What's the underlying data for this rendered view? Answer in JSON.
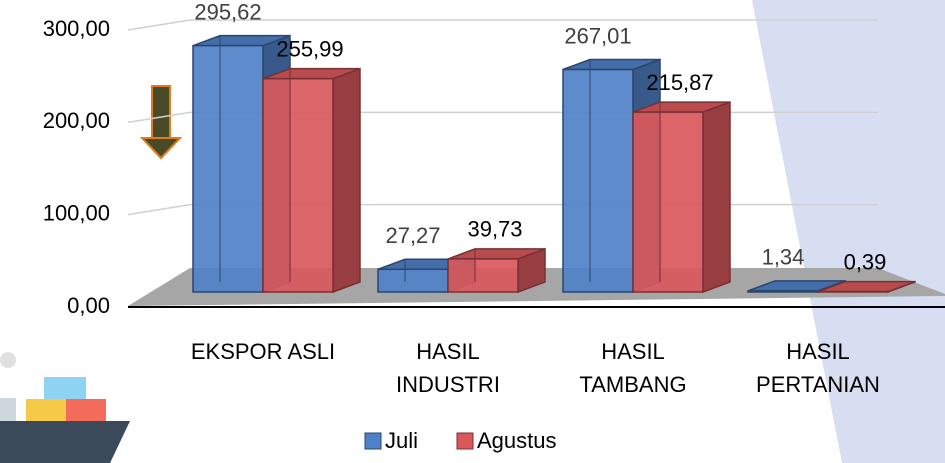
{
  "chart_data": {
    "type": "bar",
    "categories": [
      "EKSPOR ASLI",
      "HASIL\nINDUSTRI",
      "HASIL\nTAMBANG",
      "HASIL\nPERTANIAN"
    ],
    "series": [
      {
        "name": "Juli",
        "color": "#4f81c7",
        "values": [
          295.62,
          27.27,
          267.01,
          1.34
        ],
        "value_labels": [
          "295,62",
          "27,27",
          "267,01",
          "1,34"
        ]
      },
      {
        "name": "Agustus",
        "color": "#d9585c",
        "values": [
          255.99,
          39.73,
          215.87,
          0.39
        ],
        "value_labels": [
          "255,99",
          "39,73",
          "215,87",
          "0,39"
        ]
      }
    ],
    "ylim": [
      0,
      300
    ],
    "yticks": [
      {
        "value": 0,
        "label": "0,00"
      },
      {
        "value": 100,
        "label": "100,00"
      },
      {
        "value": 200,
        "label": "200,00"
      },
      {
        "value": 300,
        "label": "300,00"
      }
    ],
    "grid": true,
    "legend": "bottom"
  }
}
